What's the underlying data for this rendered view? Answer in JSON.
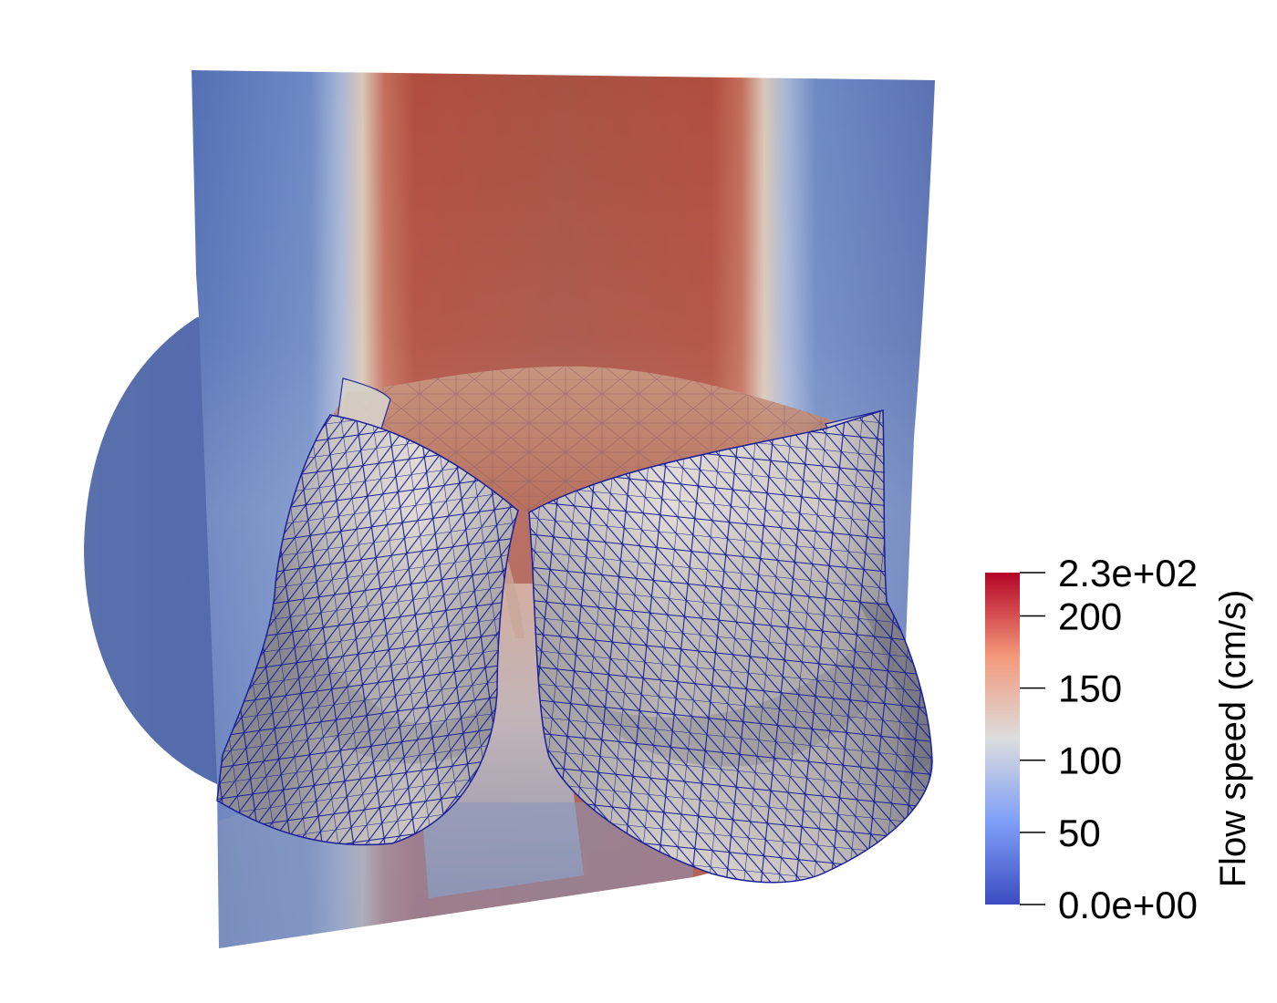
{
  "colorbar": {
    "title": "Flow speed (cm/s)",
    "min": 0,
    "max": 230,
    "ticks": [
      {
        "value": 230,
        "label": "2.3e+02"
      },
      {
        "value": 200,
        "label": "200"
      },
      {
        "value": 150,
        "label": "150"
      },
      {
        "value": 100,
        "label": "100"
      },
      {
        "value": 50,
        "label": "50"
      },
      {
        "value": 0,
        "label": "0.0e+00"
      }
    ],
    "colors": [
      "#3b4cc0",
      "#7f9ff8",
      "#dcdddd",
      "#f4987a",
      "#b40426"
    ]
  },
  "scene_colors": {
    "background": "#ffffff",
    "slice_low": "#4e6ab0",
    "slice_high": "#b2503f",
    "leaflet_fill": "#dcd7d0",
    "leaflet_shadow": "#8e8e94",
    "mesh_edge": "#1a1f9a"
  }
}
